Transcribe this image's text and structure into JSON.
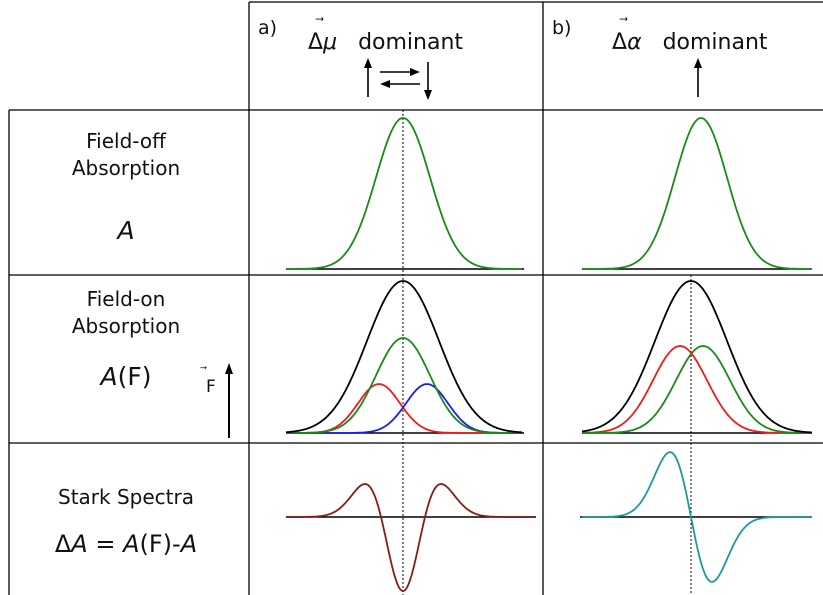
{
  "panels": {
    "a": {
      "label": "a)",
      "delta": "Δ",
      "quantity": "μ",
      "quantity_accent": "⃗",
      "dominant": "dominant"
    },
    "b": {
      "label": "b)",
      "delta": "Δ",
      "quantity": "α",
      "quantity_accent": "⃗",
      "dominant": "dominant"
    }
  },
  "rows": {
    "field_off": {
      "line1": "Field-off",
      "line2": "Absorption",
      "symbol": "A"
    },
    "field_on": {
      "line1": "Field-on",
      "line2": "Absorption",
      "symbol": "A",
      "symbol_suffix": "(F)",
      "field_vector": "F",
      "field_vector_accent": "⃗"
    },
    "stark": {
      "line1": "Stark Spectra",
      "eq_delta": "Δ",
      "eq_A1": "A",
      "eq_mid": " = ",
      "eq_A2": "A",
      "eq_F": "(F)-",
      "eq_A3": "A"
    }
  },
  "colors": {
    "green": "#1a8a1a",
    "red": "#ee1c1c",
    "blue": "#1c1cee",
    "black": "#000000",
    "darkred": "#8b1a1a",
    "teal": "#1a9a9a"
  }
}
